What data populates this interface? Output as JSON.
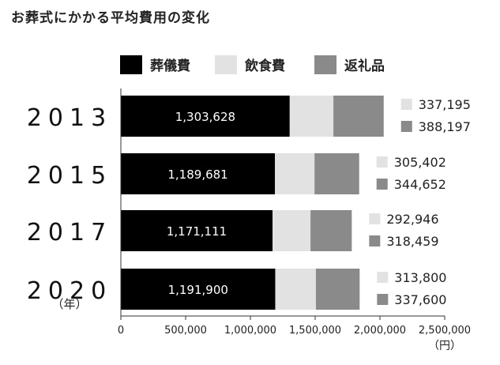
{
  "title": "お葬式にかかる平均費用の変化",
  "chart_data": {
    "type": "bar",
    "orientation": "horizontal",
    "stacked": true,
    "categories": [
      "2013",
      "2015",
      "2017",
      "2020"
    ],
    "category_unit": "（年）",
    "value_unit": "（円）",
    "xlim": [
      0,
      2500000
    ],
    "x_ticks": [
      "0",
      "500,000",
      "1,000,000",
      "1,500,000",
      "2,000,000",
      "2,500,000"
    ],
    "x_tick_values": [
      0,
      500000,
      1000000,
      1500000,
      2000000,
      2500000
    ],
    "legend_position": "top",
    "grid": false,
    "series": [
      {
        "name": "葬儀費",
        "color": "#000000",
        "values": [
          1303628,
          1189681,
          1171111,
          1191900
        ],
        "labels": [
          "1,303,628",
          "1,189,681",
          "1,171,111",
          "1,191,900"
        ]
      },
      {
        "name": "飲食費",
        "color": "#e2e2e2",
        "values": [
          337195,
          305402,
          292946,
          313800
        ],
        "labels": [
          "337,195",
          "305,402",
          "292,946",
          "313,800"
        ]
      },
      {
        "name": "返礼品",
        "color": "#8a8a8a",
        "values": [
          388197,
          344652,
          318459,
          337600
        ],
        "labels": [
          "388,197",
          "344,652",
          "318,459",
          "337,600"
        ]
      }
    ]
  }
}
